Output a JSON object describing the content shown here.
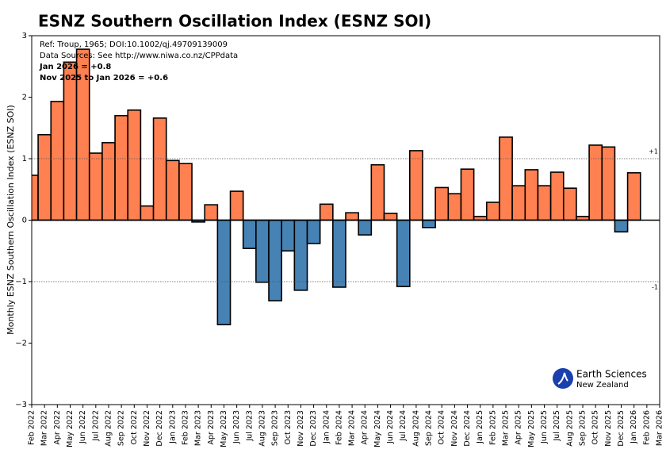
{
  "chart_data": {
    "type": "bar",
    "title": "ESNZ Southern Oscillation Index (ESNZ SOI)",
    "y_label": "Monthly ESNZ Southern Oscillation Index (ESNZ SOI)",
    "annotations": [
      "Ref: Troup, 1965; DOI:10.1002/qj.49709139009",
      "Data Sources: See http://www.niwa.co.nz/CPPdata",
      "Jan 2026 = +0.8",
      "Nov 2025 to Jan 2026 = +0.6"
    ],
    "logo": [
      "Earth Sciences",
      "New Zealand"
    ],
    "categories": [
      "Feb 2022",
      "Mar 2022",
      "Apr 2022",
      "May 2022",
      "Jun 2022",
      "Jul 2022",
      "Aug 2022",
      "Sep 2022",
      "Oct 2022",
      "Nov 2022",
      "Dec 2022",
      "Jan 2023",
      "Feb 2023",
      "Mar 2023",
      "Apr 2023",
      "May 2023",
      "Jun 2023",
      "Jul 2023",
      "Aug 2023",
      "Sep 2023",
      "Oct 2023",
      "Nov 2023",
      "Dec 2023",
      "Jan 2024",
      "Feb 2024",
      "Mar 2024",
      "Apr 2024",
      "May 2024",
      "Jun 2024",
      "Jul 2024",
      "Aug 2024",
      "Sep 2024",
      "Oct 2024",
      "Nov 2024",
      "Dec 2024",
      "Jan 2025",
      "Feb 2025",
      "Mar 2025",
      "Apr 2025",
      "May 2025",
      "Jun 2025",
      "Jul 2025",
      "Aug 2025",
      "Sep 2025",
      "Oct 2025",
      "Nov 2025",
      "Dec 2025",
      "Jan 2026",
      "Feb 2026",
      "Mar 2026"
    ],
    "values": [
      0.73,
      1.39,
      1.93,
      2.57,
      2.78,
      1.09,
      1.26,
      1.7,
      1.79,
      0.23,
      1.66,
      0.97,
      0.92,
      -0.03,
      0.25,
      -1.7,
      0.47,
      -0.46,
      -1.01,
      -1.31,
      -0.5,
      -1.14,
      -0.38,
      0.26,
      -1.09,
      0.12,
      -0.24,
      0.9,
      0.11,
      -1.08,
      1.13,
      -0.12,
      0.53,
      0.43,
      0.83,
      0.06,
      0.29,
      1.35,
      0.56,
      0.82,
      0.56,
      0.78,
      0.52,
      0.06,
      1.22,
      1.19,
      -0.19,
      0.77,
      null,
      null
    ],
    "positive_color": "#ff8050",
    "negative_color": "#4682b4",
    "ylim": [
      -3,
      3
    ],
    "yticks": [
      {
        "value": -3,
        "label": "−3"
      },
      {
        "value": -2,
        "label": "−2"
      },
      {
        "value": -1,
        "label": "−1"
      },
      0,
      1,
      2,
      3
    ],
    "ref_lines": [
      {
        "value": 1,
        "label": "+1"
      },
      {
        "value": -1,
        "label": "-1"
      }
    ]
  }
}
